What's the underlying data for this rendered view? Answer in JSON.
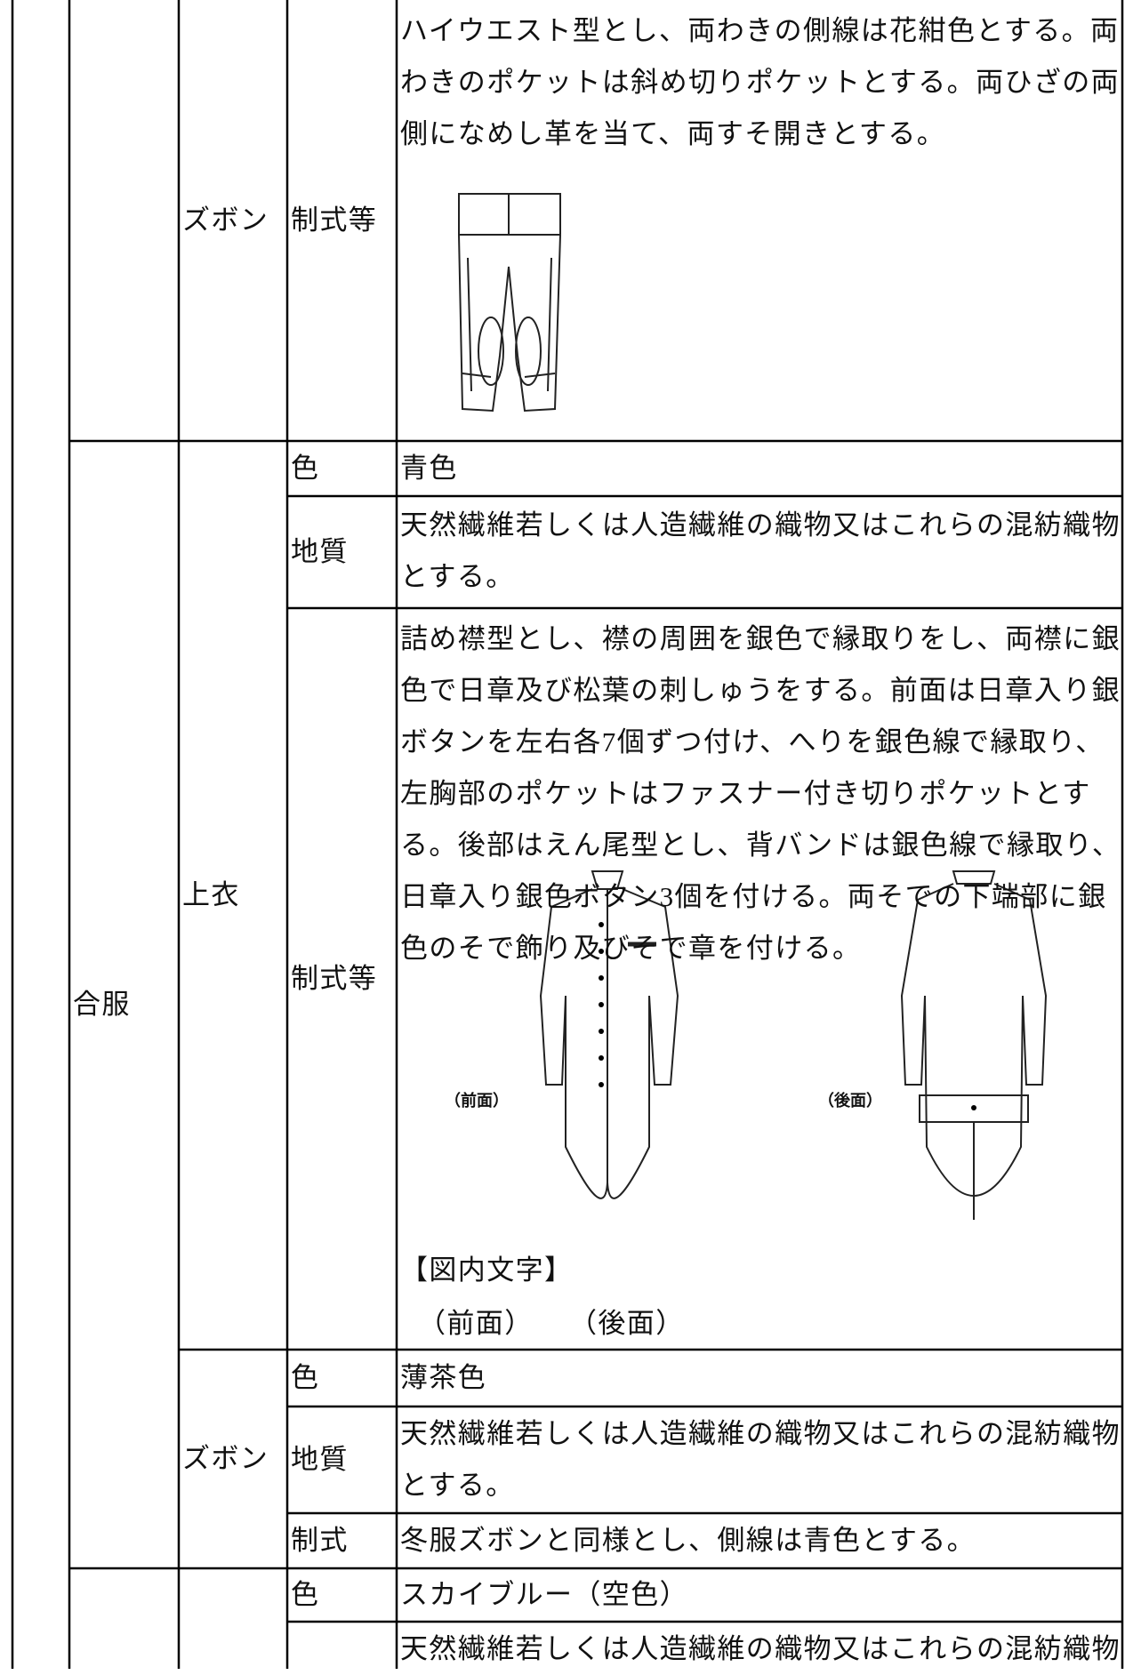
{
  "winter_trousers": {
    "item": "ズボン",
    "style_label": "制式等",
    "style": "ハイウエスト型とし、両わきの側線は花紺色とする。両わきのポケットは斜め切りポケットとする。両ひざの両側になめし革を当て、両すそ開きとする。"
  },
  "intermediate": {
    "label": "合服",
    "jacket": {
      "item": "上衣",
      "color_label": "色",
      "color": "青色",
      "material_label": "地質",
      "material": "天然繊維若しくは人造繊維の織物又はこれらの混紡織物とする。",
      "style_label": "制式等",
      "style": "詰め襟型とし、襟の周囲を銀色で縁取りをし、両襟に銀色で日章及び松葉の刺しゅうをする。前面は日章入り銀ボタンを左右各7個ずつ付け、へりを銀色線で縁取り、左胸部のポケットはファスナー付き切りポケットとする。後部はえん尾型とし、背バンドは銀色線で縁取り、日章入り銀色ボタン3個を付ける。両そでの下端部に銀色のそで飾り及びそで章を付ける。",
      "figure_front": "（前面）",
      "figure_back": "（後面）",
      "figure_caption": "【図内文字】",
      "figure_caption_front": "（前面）",
      "figure_caption_back": "（後面）"
    },
    "trousers": {
      "item": "ズボン",
      "color_label": "色",
      "color": "薄茶色",
      "material_label": "地質",
      "material": "天然繊維若しくは人造繊維の織物又はこれらの混紡織物とする。",
      "style_label": "制式",
      "style": "冬服ズボンと同様とし、側線は青色とする。"
    }
  },
  "next_section": {
    "color_label": "色",
    "color": "スカイブルー（空色）",
    "material": "天然繊維若しくは人造繊維の織物又はこれらの混紡織物"
  }
}
